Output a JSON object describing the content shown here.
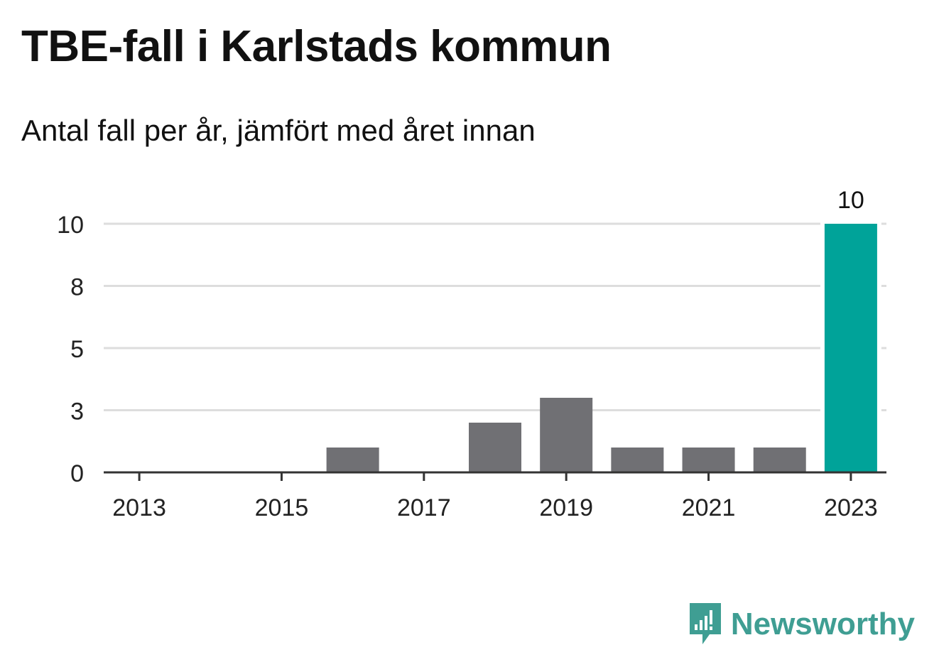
{
  "header": {
    "title": "TBE-fall i Karlstads kommun",
    "subtitle": "Antal fall per år, jämfört med året innan"
  },
  "chart_data": {
    "type": "bar",
    "categories": [
      "2013",
      "2014",
      "2015",
      "2016",
      "2017",
      "2018",
      "2019",
      "2020",
      "2021",
      "2022",
      "2023"
    ],
    "values": [
      0,
      0,
      0,
      1,
      0,
      2,
      3,
      1,
      1,
      1,
      10
    ],
    "highlight_index": 10,
    "highlight_label": "10",
    "x_tick_labels": [
      "2013",
      "2015",
      "2017",
      "2019",
      "2021",
      "2023"
    ],
    "y_ticks": [
      {
        "value": 0,
        "label": "0"
      },
      {
        "value": 2.5,
        "label": "3"
      },
      {
        "value": 5,
        "label": "5"
      },
      {
        "value": 7.5,
        "label": "8"
      },
      {
        "value": 10,
        "label": "10"
      }
    ],
    "ylim": [
      0,
      10
    ],
    "xlabel": "",
    "ylabel": "",
    "grid": true,
    "colors": {
      "bar": "#707074",
      "highlight": "#00a399",
      "grid": "#dddddd",
      "axis": "#333333",
      "text": "#222222"
    }
  },
  "brand": {
    "name": "Newsworthy",
    "logo_icon": "newsworthy-chart-bubble-icon",
    "color": "#3f9e93"
  }
}
